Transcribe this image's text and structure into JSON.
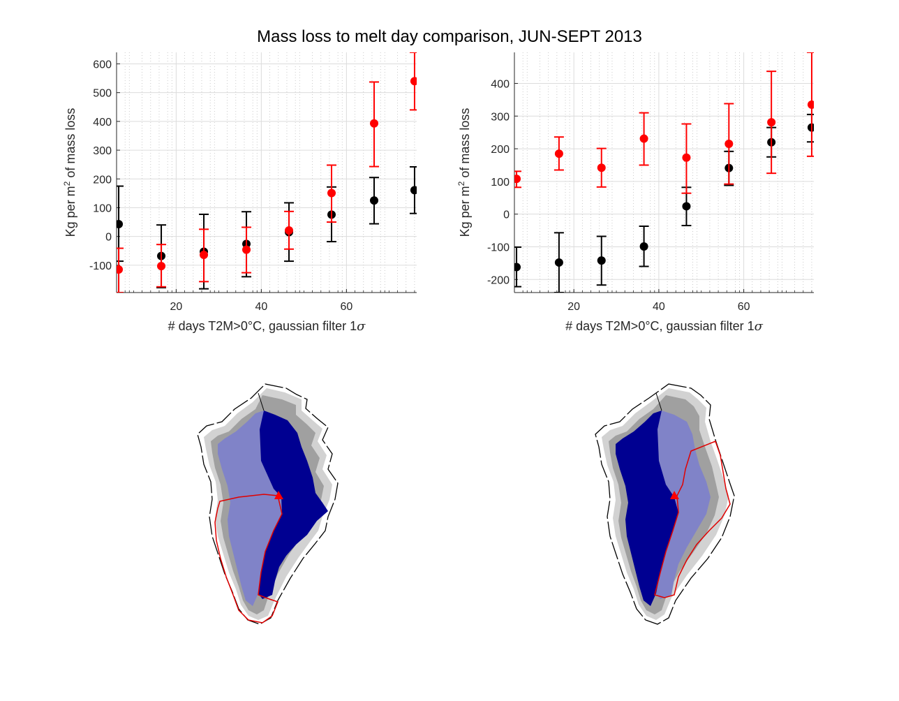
{
  "figure": {
    "title": "Mass loss to melt day comparison, JUN-SEPT 2013"
  },
  "colors": {
    "series_black": "#000000",
    "series_red": "#ff0000",
    "map_dark_region": "#000091",
    "map_light_region": "#8083c8",
    "map_outer_gray": "#a0a0a0",
    "map_outer_lightgray": "#d0d0d0",
    "boundary_red": "#e00000"
  },
  "chart_data": [
    {
      "type": "scatter",
      "error_bars": true,
      "xlabel": "# days T2M>0°C, gaussian filter 1",
      "xlabel_symbol": "σ",
      "ylabel_prefix": "Kg per m",
      "ylabel_sup": "2",
      "ylabel_suffix": " of mass loss",
      "xlim": [
        6,
        76.5
      ],
      "ylim": [
        -195,
        640
      ],
      "xticks": [
        20,
        40,
        60
      ],
      "yticks": [
        -100,
        0,
        100,
        200,
        300,
        400,
        500,
        600
      ],
      "grid": true,
      "minor_grid": true,
      "series": [
        {
          "color": "black",
          "x": [
            6.5,
            16.5,
            26.5,
            36.5,
            46.5,
            56.5,
            66.5,
            76
          ],
          "y": [
            43,
            -68,
            -53,
            -26,
            15,
            76,
            125,
            161
          ],
          "lower": [
            -86,
            -178,
            -182,
            -140,
            -86,
            -18,
            44,
            80
          ],
          "upper": [
            175,
            40,
            77,
            86,
            117,
            172,
            205,
            242
          ]
        },
        {
          "color": "red",
          "x": [
            6.5,
            16.5,
            26.5,
            36.5,
            46.5,
            56.5,
            66.5,
            76
          ],
          "y": [
            -115,
            -103,
            -64,
            -46,
            21,
            151,
            393,
            540
          ],
          "lower": [
            -195,
            -175,
            -157,
            -126,
            -44,
            50,
            243,
            440
          ],
          "upper": [
            -41,
            -28,
            25,
            32,
            87,
            248,
            537,
            640
          ]
        }
      ]
    },
    {
      "type": "scatter",
      "error_bars": true,
      "xlabel": "# days T2M>0°C, gaussian filter 1",
      "xlabel_symbol": "σ",
      "ylabel_prefix": "Kg per m",
      "ylabel_sup": "2",
      "ylabel_suffix": " of mass loss",
      "xlim": [
        6,
        76.5
      ],
      "ylim": [
        -240,
        495
      ],
      "xticks": [
        20,
        40,
        60
      ],
      "yticks": [
        -200,
        -100,
        0,
        100,
        200,
        300,
        400
      ],
      "grid": true,
      "minor_grid": true,
      "series": [
        {
          "color": "black",
          "x": [
            6.5,
            16.5,
            26.5,
            36.5,
            46.5,
            56.5,
            66.5,
            76
          ],
          "y": [
            -162,
            -148,
            -142,
            -99,
            24,
            141,
            220,
            265
          ],
          "lower": [
            -222,
            -240,
            -217,
            -160,
            -35,
            88,
            175,
            221
          ],
          "upper": [
            -101,
            -57,
            -68,
            -37,
            82,
            192,
            265,
            305
          ]
        },
        {
          "color": "red",
          "x": [
            6.5,
            16.5,
            26.5,
            36.5,
            46.5,
            56.5,
            66.5,
            76
          ],
          "y": [
            108,
            185,
            142,
            231,
            173,
            215,
            281,
            335
          ],
          "lower": [
            82,
            135,
            83,
            150,
            64,
            92,
            125,
            177
          ],
          "upper": [
            131,
            236,
            201,
            310,
            276,
            338,
            437,
            495
          ]
        }
      ]
    }
  ]
}
